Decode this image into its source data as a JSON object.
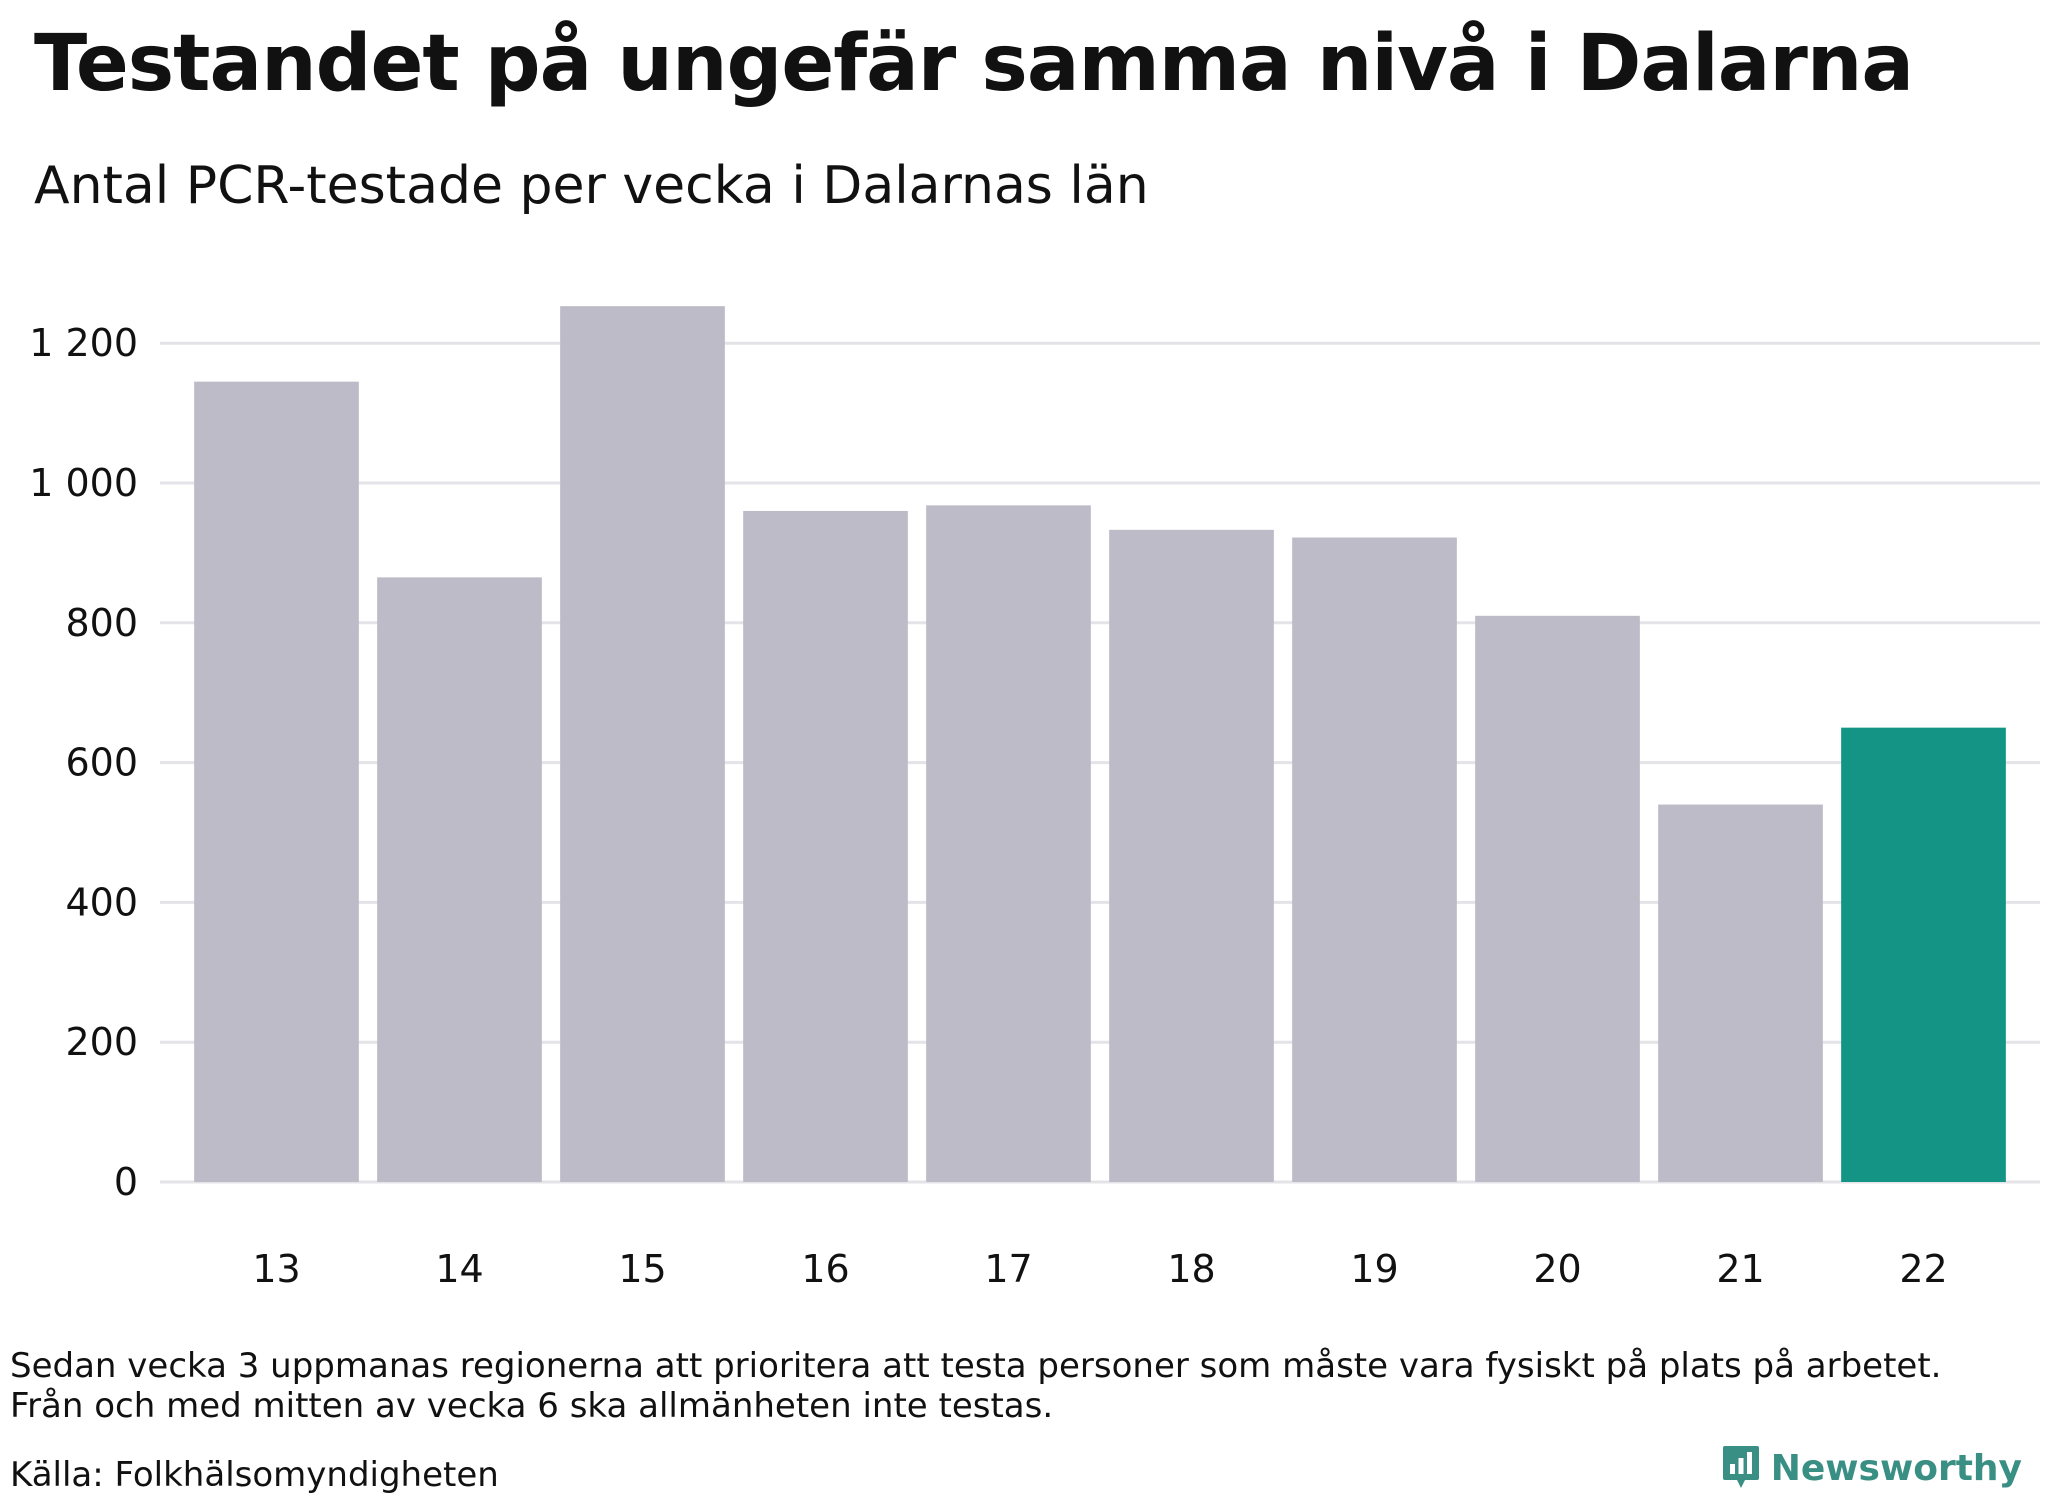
{
  "title": "Testandet på ungefär samma nivå i Dalarna",
  "subtitle": "Antal PCR-testade per vecka i Dalarnas län",
  "note_lines": [
    "Sedan vecka 3 uppmanas regionerna att prioritera att testa personer som måste vara fysiskt på plats på arbetet.",
    "Från och med mitten av vecka 6 ska allmänheten inte testas."
  ],
  "source": "Källa: Folkhälsomyndigheten",
  "brand": {
    "name": "Newsworthy",
    "icon": "newsworthy-logo-icon",
    "color": "#3a8f84"
  },
  "colors": {
    "bar_default": "#bdbbc8",
    "bar_highlight": "#149485",
    "grid": "#e3e3e8"
  },
  "chart_data": {
    "type": "bar",
    "categories": [
      "13",
      "14",
      "15",
      "16",
      "17",
      "18",
      "19",
      "20",
      "21",
      "22"
    ],
    "values": [
      1145,
      865,
      1253,
      960,
      968,
      933,
      922,
      810,
      540,
      650
    ],
    "highlight_index": 9,
    "title": "Testandet på ungefär samma nivå i Dalarna",
    "subtitle": "Antal PCR-testade per vecka i Dalarnas län",
    "ylim": [
      0,
      1300
    ],
    "yticks": [
      0,
      200,
      400,
      600,
      800,
      1000,
      1200
    ],
    "ytick_labels": [
      "0",
      "200",
      "400",
      "600",
      "800",
      "1 000",
      "1 200"
    ],
    "grid": true
  }
}
